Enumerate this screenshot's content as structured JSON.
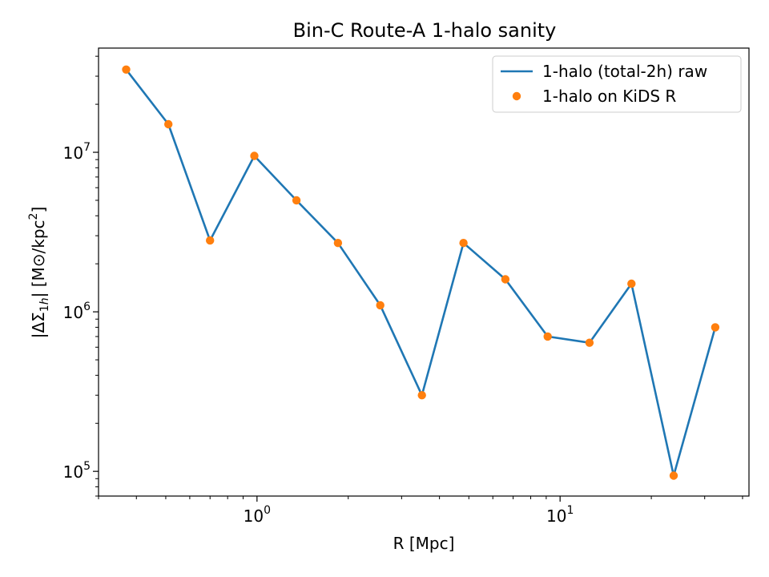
{
  "chart_data": {
    "type": "line",
    "title": "Bin-C Route-A 1-halo sanity",
    "xlabel": "R [Mpc]",
    "ylabel": "|ΔΣ1h| [M⊙/kpc²]",
    "x_scale": "log",
    "y_scale": "log",
    "xlim": [
      0.3,
      42
    ],
    "ylim": [
      70000,
      45000000
    ],
    "grid": false,
    "legend_position": "top-right",
    "x_ticks": [
      {
        "value": 1,
        "base": "10",
        "exp": "0"
      },
      {
        "value": 10,
        "base": "10",
        "exp": "1"
      }
    ],
    "y_ticks": [
      {
        "value": 100000,
        "base": "10",
        "exp": "5"
      },
      {
        "value": 1000000,
        "base": "10",
        "exp": "6"
      },
      {
        "value": 10000000,
        "base": "10",
        "exp": "7"
      }
    ],
    "x": [
      0.37,
      0.51,
      0.7,
      0.98,
      1.35,
      1.85,
      2.55,
      3.5,
      4.8,
      6.6,
      9.1,
      12.5,
      17.2,
      23.7,
      32.5
    ],
    "series": [
      {
        "name": "1-halo (total-2h) raw",
        "style": "line",
        "color": "#1f77b4",
        "values": [
          33000000,
          15000000,
          2800000,
          9500000,
          5000000,
          2700000,
          1100000,
          300000,
          2700000,
          1600000,
          700000,
          640000,
          1500000,
          94000,
          800000
        ]
      },
      {
        "name": "1-halo on KiDS R",
        "style": "markers",
        "color": "#ff7f0e",
        "values": [
          33000000,
          15000000,
          2800000,
          9500000,
          5000000,
          2700000,
          1100000,
          300000,
          2700000,
          1600000,
          700000,
          640000,
          1500000,
          94000,
          800000
        ]
      }
    ]
  }
}
